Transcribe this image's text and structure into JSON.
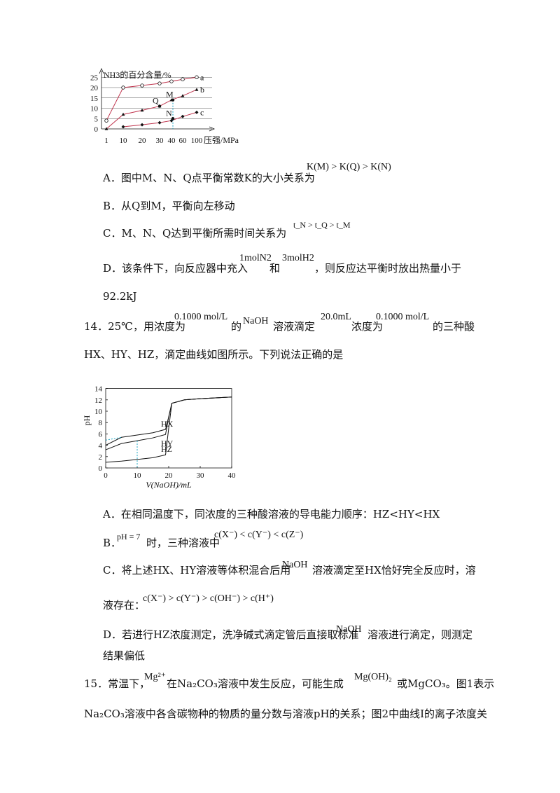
{
  "q13": {
    "chart_data": {
      "type": "line",
      "ylabel": "NH3的百分含量/%",
      "xlabel": "压强/MPa",
      "x_ticks": [
        "1",
        "10",
        "20",
        "30",
        "40",
        "60",
        "100"
      ],
      "y_ticks": [
        "0",
        "5",
        "10",
        "15",
        "20",
        "25"
      ],
      "ylim": [
        0,
        25
      ],
      "series": [
        {
          "name": "a",
          "points": [
            [
              1,
              4
            ],
            [
              10,
              20
            ],
            [
              20,
              21
            ],
            [
              30,
              22
            ],
            [
              40,
              23
            ],
            [
              60,
              24
            ],
            [
              100,
              25
            ]
          ],
          "marker": "circle-open"
        },
        {
          "name": "b",
          "points": [
            [
              1,
              0
            ],
            [
              10,
              7
            ],
            [
              20,
              9
            ],
            [
              30,
              11
            ],
            [
              40,
              14
            ],
            [
              60,
              16
            ],
            [
              100,
              19
            ]
          ],
          "marker": "triangle"
        },
        {
          "name": "c",
          "points": [
            [
              10,
              1
            ],
            [
              20,
              2
            ],
            [
              30,
              3
            ],
            [
              40,
              4
            ],
            [
              60,
              6
            ],
            [
              100,
              8
            ]
          ],
          "marker": "diamond"
        }
      ],
      "points": [
        {
          "name": "M",
          "x": 50,
          "y": 14
        },
        {
          "name": "Q",
          "x": 30,
          "y": 11
        },
        {
          "name": "N",
          "x": 50,
          "y": 5
        }
      ]
    },
    "optionA_text": "A．图中M、N、Q点平衡常数K的大小关系为",
    "optionA_formula": "K(M) > K(Q) > K(N)",
    "optionB": "B．从Q到M，平衡向左移动",
    "optionC_text": "C．M、N、Q达到平衡所需时间关系为",
    "optionC_formula": "t_N > t_Q > t_M",
    "optionD_text1": "D．该条件下，向反应器中充入",
    "optionD_f1": "1molN2",
    "optionD_and": "和",
    "optionD_f2": "3molH2",
    "optionD_text2": "，则反应达平衡时放出热量小于",
    "optionD_text3": "92.2kJ"
  },
  "q14": {
    "stem_prefix": "14．25℃，用浓度为",
    "conc1": "0.1000 mol/L",
    "of1": "的",
    "naoh": "NaOH",
    "stem_mid1": "溶液滴定",
    "vol": "20.0mL",
    "stem_mid2": "浓度为",
    "conc2": "0.1000 mol/L",
    "stem_end": "的三种酸",
    "stem_line2": "HX、HY、HZ，滴定曲线如图所示。下列说法正确的是",
    "chart_data": {
      "type": "line",
      "xlabel": "V(NaOH)/mL",
      "ylabel": "pH",
      "xlim": [
        0,
        40
      ],
      "ylim": [
        0,
        14
      ],
      "x_ticks": [
        "0",
        "10",
        "20",
        "30",
        "40"
      ],
      "y_ticks": [
        "0",
        "2",
        "4",
        "6",
        "8",
        "10",
        "12",
        "14"
      ],
      "series": [
        {
          "name": "HX",
          "points": [
            [
              0,
              4
            ],
            [
              5,
              5.4
            ],
            [
              10,
              5.8
            ],
            [
              15,
              6.2
            ],
            [
              19,
              6.8
            ],
            [
              20,
              9
            ],
            [
              21,
              11.4
            ],
            [
              25,
              12
            ],
            [
              30,
              12.2
            ],
            [
              40,
              12.5
            ]
          ]
        },
        {
          "name": "HY",
          "points": [
            [
              0,
              3.2
            ],
            [
              5,
              4.3
            ],
            [
              10,
              4.8
            ],
            [
              15,
              5.3
            ],
            [
              19,
              5.9
            ],
            [
              20,
              9
            ],
            [
              21,
              11.4
            ],
            [
              25,
              12
            ],
            [
              30,
              12.2
            ],
            [
              40,
              12.5
            ]
          ]
        },
        {
          "name": "HZ",
          "points": [
            [
              0,
              1
            ],
            [
              5,
              1.2
            ],
            [
              10,
              1.5
            ],
            [
              15,
              1.8
            ],
            [
              19,
              2.3
            ],
            [
              20,
              7
            ],
            [
              21,
              11.4
            ],
            [
              25,
              12
            ],
            [
              30,
              12.2
            ],
            [
              40,
              12.5
            ]
          ]
        }
      ]
    },
    "optA": "A．在相同温度下，同浓度的三种酸溶液的导电能力顺序：HZ<HY<HX",
    "optB_pre": "B．",
    "optB_ph": "pH = 7",
    "optB_mid": "时，三种溶液中",
    "optB_formula": "c(X⁻) < c(Y⁻) < c(Z⁻)",
    "optC_line1_a": "C．将上述HX、HY溶液等体积混合后用",
    "optC_naoh": "NaOH",
    "optC_line1_b": "溶液滴定至HX恰好完全反应时，溶",
    "optC_line2": "液存在：",
    "optC_formula": "c(X⁻) > c(Y⁻) > c(OH⁻) > c(H⁺)",
    "optD_line1_a": "D．若进行HZ浓度测定，洗净碱式滴定管后直接取标准",
    "optD_naoh": "NaOH",
    "optD_line1_b": "溶液进行滴定，则测定",
    "optD_line2": "结果偏低"
  },
  "q15": {
    "line1_a": "15．常温下，",
    "mg": "Mg²⁺",
    "line1_b": "在Na₂CO₃溶液中发生反应，可能生成",
    "mgoh": "Mg(OH)₂",
    "line1_c": "或MgCO₃。图1表示",
    "line2": "Na₂CO₃溶液中各含碳物种的物质的量分数与溶液pH的关系；图2中曲线Ⅰ的离子浓度关"
  }
}
